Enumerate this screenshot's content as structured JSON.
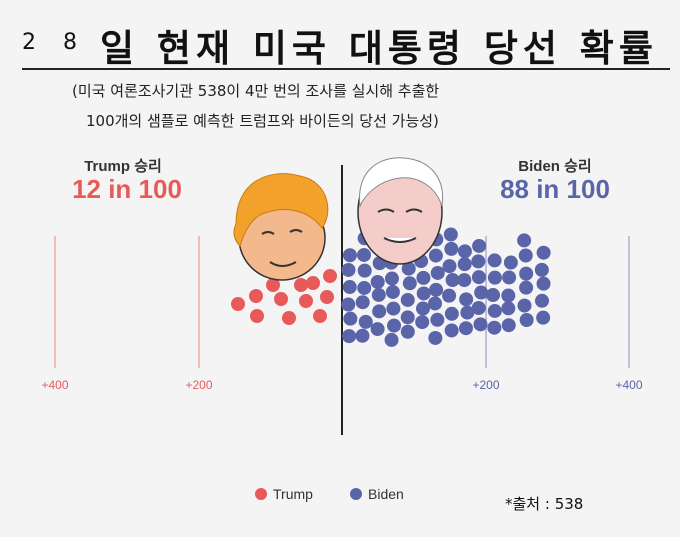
{
  "title": {
    "number": "2 8",
    "text": "일 현재 미국 대통령 당선 확률"
  },
  "subtitle": {
    "line1": "(미국 여론조사기관 538이 4만 번의 조사를 실시해 추출한",
    "line2": "100개의 샘플로 예측한 트럼프와 바이든의 당선 가능성)"
  },
  "source": "*출처 :  538",
  "colors": {
    "trump": "#e85a5a",
    "biden": "#5a64a8",
    "center_line": "#222222"
  },
  "chart_data": {
    "type": "scatter",
    "xlabel": "",
    "ylabel": "",
    "x_ticks": [
      "+400",
      "+200",
      "+200",
      "+400"
    ],
    "series": [
      {
        "name": "Trump",
        "label": "Trump 승리",
        "value_text": "12 in 100",
        "count": 12,
        "color": "#e85a5a"
      },
      {
        "name": "Biden",
        "label": "Biden  승리",
        "value_text": "88 in 100",
        "count": 88,
        "color": "#5a64a8"
      }
    ],
    "legend": [
      {
        "label": "Trump",
        "color": "#e85a5a"
      },
      {
        "label": "Biden",
        "color": "#5a64a8"
      }
    ],
    "legend_position": "bottom-center"
  }
}
